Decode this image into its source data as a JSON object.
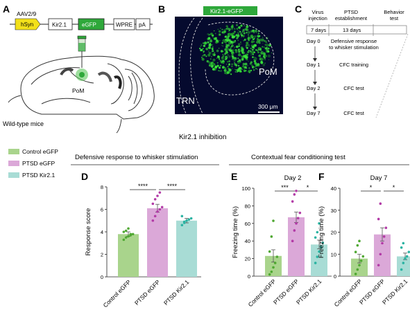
{
  "panels": {
    "A": {
      "label": "A",
      "vector": "AAV2/9",
      "promoter": "hSyn",
      "elements": [
        "Kir2.1",
        "eGFP",
        "WPRE",
        "pA"
      ],
      "target": "PoM",
      "caption": "Wild-type mice"
    },
    "B": {
      "label": "B",
      "header": "Kir2.1-eGFP",
      "region_trn": "TRN",
      "region_pom": "PoM",
      "scale": "300 μm"
    },
    "C": {
      "label": "C",
      "col_virus": "Virus\ninjection",
      "col_ptsd": "PTSD\nestablishment",
      "col_behavior": "Behavior\ntest",
      "dur1": "7 days",
      "dur2": "13 days",
      "events": [
        {
          "day": "Day 0",
          "desc": "Defensive response\nto whisker stimulation"
        },
        {
          "day": "Day 1",
          "desc": "CFC training"
        },
        {
          "day": "Day 2",
          "desc": "CFC test"
        },
        {
          "day": "Day 7",
          "desc": "CFC test"
        }
      ]
    }
  },
  "section_title": "Kir2.1 inhibition",
  "legend": [
    {
      "label": "Control eGFP",
      "color": "#a9d48c"
    },
    {
      "label": "PTSD eGFP",
      "color": "#dba8d8"
    },
    {
      "label": "PTSD Kir2.1",
      "color": "#a8dcd5"
    }
  ],
  "group_titles": {
    "defensive": "Defensive response to whisker stimulation",
    "cfc": "Contextual fear conditioning test"
  },
  "chart_data": [
    {
      "panel": "D",
      "type": "bar",
      "title": "",
      "ylabel": "Response score",
      "xlabel": "",
      "ylim": [
        0,
        8
      ],
      "yticks": [
        0,
        2,
        4,
        6,
        8
      ],
      "categories": [
        "Control eGFP",
        "PTSD eGFP",
        "PTSD Kir2.1"
      ],
      "values": [
        3.8,
        6.1,
        5.0
      ],
      "errors": [
        0.2,
        0.35,
        0.2
      ],
      "colors": [
        "#a9d48c",
        "#dba8d8",
        "#a8dcd5"
      ],
      "dot_colors": [
        "#4fa832",
        "#b23aa6",
        "#2bb3a2"
      ],
      "points": [
        [
          3.3,
          3.5,
          3.6,
          3.8,
          3.8,
          4.0,
          4.1,
          4.3,
          3.7
        ],
        [
          5.0,
          5.4,
          5.8,
          6.0,
          6.2,
          6.5,
          6.9,
          7.2,
          7.5
        ],
        [
          4.6,
          4.8,
          5.0,
          5.1,
          5.2,
          5.4,
          4.9
        ]
      ],
      "significance": [
        {
          "from": 0,
          "to": 1,
          "label": "****"
        },
        {
          "from": 1,
          "to": 2,
          "label": "****"
        }
      ]
    },
    {
      "panel": "E",
      "type": "bar",
      "title": "Day 2",
      "ylabel": "Freezing time (%)",
      "xlabel": "",
      "ylim": [
        0,
        100
      ],
      "yticks": [
        0,
        20,
        40,
        60,
        80,
        100
      ],
      "categories": [
        "Control eGFP",
        "PTSD eGFP",
        "PTSD Kir2.1"
      ],
      "values": [
        23,
        67,
        36
      ],
      "errors": [
        7,
        6,
        5
      ],
      "colors": [
        "#a9d48c",
        "#dba8d8",
        "#a8dcd5"
      ],
      "dot_colors": [
        "#4fa832",
        "#b23aa6",
        "#2bb3a2"
      ],
      "points": [
        [
          2,
          5,
          10,
          15,
          22,
          28,
          45,
          63
        ],
        [
          40,
          52,
          60,
          66,
          72,
          85,
          93,
          97
        ],
        [
          15,
          22,
          28,
          33,
          38,
          44,
          50,
          60
        ]
      ],
      "significance": [
        {
          "from": 0,
          "to": 1,
          "label": "***"
        },
        {
          "from": 1,
          "to": 2,
          "label": "*"
        }
      ]
    },
    {
      "panel": "F",
      "type": "bar",
      "title": "Day 7",
      "ylabel": "Freezing time (%)",
      "xlabel": "",
      "ylim": [
        0,
        40
      ],
      "yticks": [
        0,
        10,
        20,
        30,
        40
      ],
      "categories": [
        "Control eGFP",
        "PTSD eGFP",
        "PTSD Kir2.1"
      ],
      "values": [
        8,
        19,
        9
      ],
      "errors": [
        2,
        3,
        1.5
      ],
      "colors": [
        "#a9d48c",
        "#dba8d8",
        "#a8dcd5"
      ],
      "dot_colors": [
        "#4fa832",
        "#b23aa6",
        "#2bb3a2"
      ],
      "points": [
        [
          1,
          3,
          5,
          7,
          9,
          11,
          14,
          16
        ],
        [
          5,
          10,
          15,
          18,
          22,
          26,
          33
        ],
        [
          3,
          6,
          8,
          9,
          11,
          13,
          15
        ]
      ],
      "significance": [
        {
          "from": 0,
          "to": 1,
          "label": "*"
        },
        {
          "from": 1,
          "to": 2,
          "label": "*"
        }
      ]
    }
  ]
}
